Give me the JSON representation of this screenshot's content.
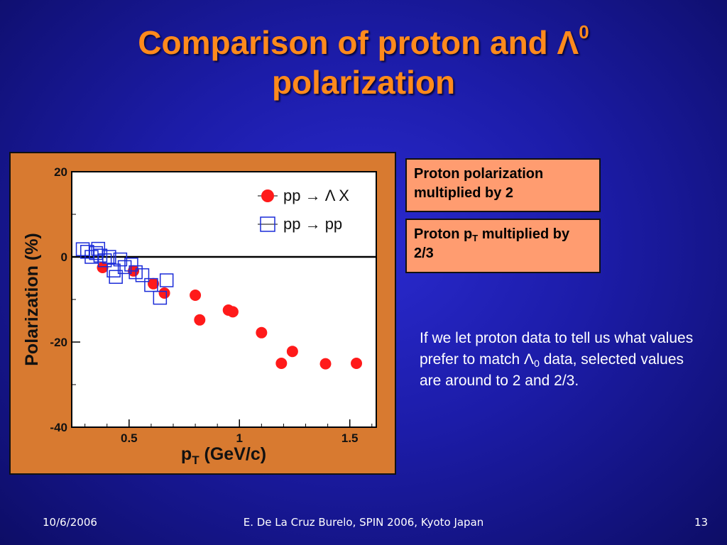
{
  "slide": {
    "title_line1": "Comparison of proton and Λ",
    "title_sup": "0",
    "title_line2": "polarization",
    "note1": "Proton polarization multiplied by 2",
    "note2_a": "Proton p",
    "note2_sub": "T",
    "note2_b": " multiplied by 2/3",
    "explain_a": "If we let proton data to tell us what values prefer to match Λ",
    "explain_sub": "0",
    "explain_b": " data, selected values are around to 2 and 2/3.",
    "footer_date": "10/6/2006",
    "footer_center": "E. De La Cruz Burelo, SPIN 2006, Kyoto Japan",
    "footer_page": "13",
    "colors": {
      "background": "#1c1ca8",
      "title": "#ff8a1c",
      "frame": "#d87a30",
      "note_box": "#ff9c70"
    }
  },
  "chart_data": {
    "type": "scatter",
    "xlabel_main": "p",
    "xlabel_sub": "T",
    "xlabel_unit": " (GeV/c)",
    "ylabel": "Polarization (%)",
    "xlim": [
      0.24,
      1.62
    ],
    "ylim": [
      -40,
      20
    ],
    "xticks": [
      0.5,
      1,
      1.5
    ],
    "xtick_labels": [
      "0.5",
      "1",
      "1.5"
    ],
    "yticks": [
      -40,
      -20,
      0,
      20
    ],
    "ytick_labels": [
      "-40",
      "-20",
      "0",
      "20"
    ],
    "zero_line": true,
    "legend_placement": "top-right",
    "series": [
      {
        "name": "pp → Λ X",
        "marker": "filled-circle",
        "color": "#ff1a1a",
        "points": [
          [
            0.38,
            -2.5
          ],
          [
            0.52,
            -3.3
          ],
          [
            0.61,
            -6.3
          ],
          [
            0.66,
            -8.5
          ],
          [
            0.8,
            -9.0
          ],
          [
            0.82,
            -14.8
          ],
          [
            0.95,
            -12.5
          ],
          [
            0.97,
            -12.9
          ],
          [
            1.1,
            -17.8
          ],
          [
            1.19,
            -25.0
          ],
          [
            1.24,
            -22.2
          ],
          [
            1.39,
            -25.1
          ],
          [
            1.53,
            -25.0
          ]
        ]
      },
      {
        "name": "pp → pp",
        "marker": "open-square",
        "color": "#1a2bd8",
        "points": [
          [
            0.29,
            1.8
          ],
          [
            0.31,
            1.2
          ],
          [
            0.33,
            0.0
          ],
          [
            0.35,
            0.9
          ],
          [
            0.36,
            1.9
          ],
          [
            0.37,
            0.3
          ],
          [
            0.39,
            -0.8
          ],
          [
            0.41,
            0.0
          ],
          [
            0.43,
            -3.2
          ],
          [
            0.44,
            -4.7
          ],
          [
            0.46,
            -0.6
          ],
          [
            0.48,
            -2.4
          ],
          [
            0.51,
            -1.8
          ],
          [
            0.53,
            -3.6
          ],
          [
            0.56,
            -4.3
          ],
          [
            0.6,
            -6.6
          ],
          [
            0.64,
            -9.6
          ],
          [
            0.67,
            -5.5
          ]
        ]
      }
    ]
  }
}
